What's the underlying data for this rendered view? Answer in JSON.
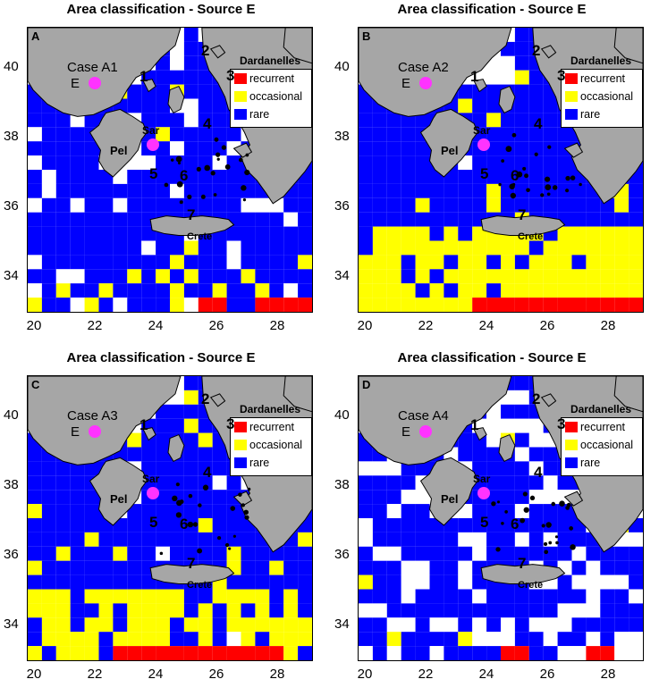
{
  "colors": {
    "recurrent": "#ff0000",
    "occasional": "#ffff00",
    "rare": "#0000ff",
    "unclassified": "#ffffff",
    "land": "#a6a6a6",
    "source": "#ff33ff"
  },
  "legend": {
    "recurrent": "recurrent",
    "occasional": "occasional",
    "rare": "rare"
  },
  "axes": {
    "x_ticks": [
      "20",
      "22",
      "24",
      "26",
      "28"
    ],
    "y_ticks": [
      "40",
      "38",
      "36",
      "34"
    ],
    "lon_range": [
      19.8,
      29.2
    ],
    "lat_range": [
      33.1,
      41.2
    ]
  },
  "place_labels": {
    "dardanelles": "Dardanelles",
    "peloponnese": "Pel",
    "saronic": "Sar",
    "crete": "Crete",
    "source_marker": "E",
    "region_numbers": [
      "1",
      "2",
      "3",
      "4",
      "5",
      "6",
      "7"
    ]
  },
  "panels": [
    {
      "letter": "A",
      "title": "Area classification - Source E",
      "case": "Case A1",
      "red_cols": [
        6,
        8,
        9
      ],
      "yellow_rows": [
        0,
        1,
        2
      ],
      "yellow_frac": 0.12,
      "blue_frac": 0.85,
      "seed": 11
    },
    {
      "letter": "B",
      "title": "Area classification - Source E",
      "case": "Case A2",
      "red_cols": [
        4,
        5,
        6,
        7,
        8,
        9
      ],
      "yellow_rows": [
        0,
        1,
        2,
        3,
        4,
        5
      ],
      "yellow_frac": 0.45,
      "blue_frac": 0.9,
      "seed": 23
    },
    {
      "letter": "C",
      "title": "Area classification - Source E",
      "case": "Case A3",
      "red_cols": [
        3,
        4,
        5,
        6,
        7,
        8
      ],
      "yellow_rows": [
        0,
        1,
        2,
        3,
        4
      ],
      "yellow_frac": 0.35,
      "blue_frac": 0.88,
      "seed": 37
    },
    {
      "letter": "D",
      "title": "Area classification - Source E",
      "case": "Case A4",
      "red_cols": [
        5,
        8
      ],
      "yellow_rows": [
        1,
        2
      ],
      "yellow_frac": 0.08,
      "blue_frac": 0.7,
      "seed": 53
    }
  ]
}
